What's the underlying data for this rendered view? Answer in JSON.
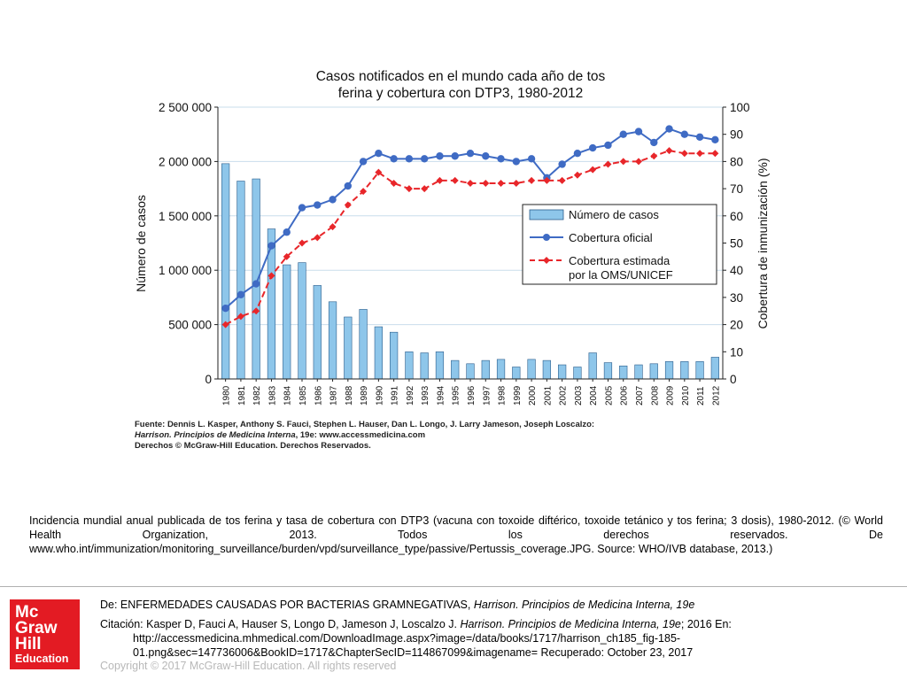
{
  "chart_data": {
    "type": "bar+line",
    "title_line1": "Casos notificados en el mundo cada año de tos",
    "title_line2": "ferina y cobertura con DTP3, 1980-2012",
    "ylabel_left": "Número de casos",
    "ylabel_right": "Cobertura de inmunización (%)",
    "ylim_left": [
      0,
      2500000
    ],
    "ylim_right": [
      0,
      100
    ],
    "left_ticks": [
      "0",
      "500 000",
      "1 000 000",
      "1 500 000",
      "2 000 000",
      "2 500 000"
    ],
    "left_tick_values": [
      0,
      500000,
      1000000,
      1500000,
      2000000,
      2500000
    ],
    "right_ticks": [
      "0",
      "10",
      "20",
      "30",
      "40",
      "50",
      "60",
      "70",
      "80",
      "90",
      "100"
    ],
    "right_tick_values": [
      0,
      10,
      20,
      30,
      40,
      50,
      60,
      70,
      80,
      90,
      100
    ],
    "grid": true,
    "legend_position": "center-right",
    "categories": [
      "1980",
      "1981",
      "1982",
      "1983",
      "1984",
      "1985",
      "1986",
      "1987",
      "1988",
      "1989",
      "1990",
      "1991",
      "1992",
      "1993",
      "1994",
      "1995",
      "1996",
      "1997",
      "1998",
      "1999",
      "2000",
      "2001",
      "2002",
      "2003",
      "2004",
      "2005",
      "2006",
      "2007",
      "2008",
      "2009",
      "2010",
      "2011",
      "2012"
    ],
    "series": [
      {
        "name": "Número de casos",
        "type": "bar",
        "axis": "left",
        "color": "#8ec6ea",
        "values": [
          1980000,
          1820000,
          1840000,
          1380000,
          1050000,
          1070000,
          860000,
          710000,
          570000,
          640000,
          480000,
          430000,
          250000,
          240000,
          250000,
          170000,
          140000,
          170000,
          180000,
          110000,
          180000,
          170000,
          130000,
          110000,
          240000,
          150000,
          120000,
          130000,
          140000,
          160000,
          160000,
          160000,
          200000
        ]
      },
      {
        "name": "Cobertura oficial",
        "type": "line",
        "axis": "right",
        "color": "#3f6bc4",
        "values": [
          26,
          31,
          35,
          49,
          54,
          63,
          64,
          66,
          71,
          80,
          83,
          81,
          81,
          81,
          82,
          82,
          83,
          82,
          81,
          80,
          81,
          74,
          79,
          83,
          85,
          86,
          90,
          91,
          87,
          92,
          90,
          89,
          88
        ]
      },
      {
        "name": "Cobertura estimada\npor la OMS/UNICEF",
        "type": "line",
        "axis": "right",
        "color": "#e8262a",
        "values": [
          20,
          23,
          25,
          38,
          45,
          50,
          52,
          56,
          64,
          69,
          76,
          72,
          70,
          70,
          73,
          73,
          72,
          72,
          72,
          72,
          73,
          73,
          73,
          75,
          77,
          79,
          80,
          80,
          82,
          84,
          83,
          83,
          83
        ]
      }
    ],
    "legend": {
      "cases": "Número de casos",
      "official": "Cobertura oficial",
      "estimated_line1": "Cobertura estimada",
      "estimated_line2": "por la OMS/UNICEF"
    }
  },
  "source": {
    "line1": "Fuente: Dennis L. Kasper, Anthony S. Fauci, Stephen L. Hauser, Dan L. Longo, J. Larry Jameson, Joseph Loscalzo:",
    "line2_book": "Harrison. Principios de Medicina Interna",
    "line2_rest": ", 19e: www.accessmedicina.com",
    "line3": "Derechos © McGraw-Hill Education. Derechos Reservados."
  },
  "caption": "Incidencia mundial anual publicada de tos ferina y tasa de cobertura con DTP3 (vacuna con toxoide diftérico, toxoide tetánico y tos ferina; 3 dosis), 1980-2012. (© World Health Organization, 2013. Todos los derechos reservados. De www.who.int/immunization/monitoring_surveillance/burden/vpd/surveillance_type/passive/Pertussis_coverage.JPG. Source: WHO/IVB database, 2013.)",
  "logo": {
    "line1": "Mc",
    "line2": "Graw",
    "line3": "Hill",
    "line4": "Education",
    "color": "#e31b23"
  },
  "reference": {
    "from_prefix": "De: ENFERMEDADES CAUSADAS POR BACTERIAS GRAMNEGATIVAS, ",
    "from_book": "Harrison. Principios de Medicina Interna, 19e",
    "citation_prefix": "Citación: Kasper D, Fauci A, Hauser S, Longo D, Jameson J, Loscalzo J. ",
    "citation_book": "Harrison. Principios de Medicina Interna, 19e",
    "citation_suffix": "; 2016 En:",
    "url_line1": "http://accessmedicina.mhmedical.com/DownloadImage.aspx?image=/data/books/1717/harrison_ch185_fig-185-",
    "url_line2": "01.png&sec=147736006&BookID=1717&ChapterSecID=114867099&imagename= Recuperado: October 23, 2017"
  },
  "copyright": "Copyright © 2017 McGraw-Hill Education. All rights reserved"
}
